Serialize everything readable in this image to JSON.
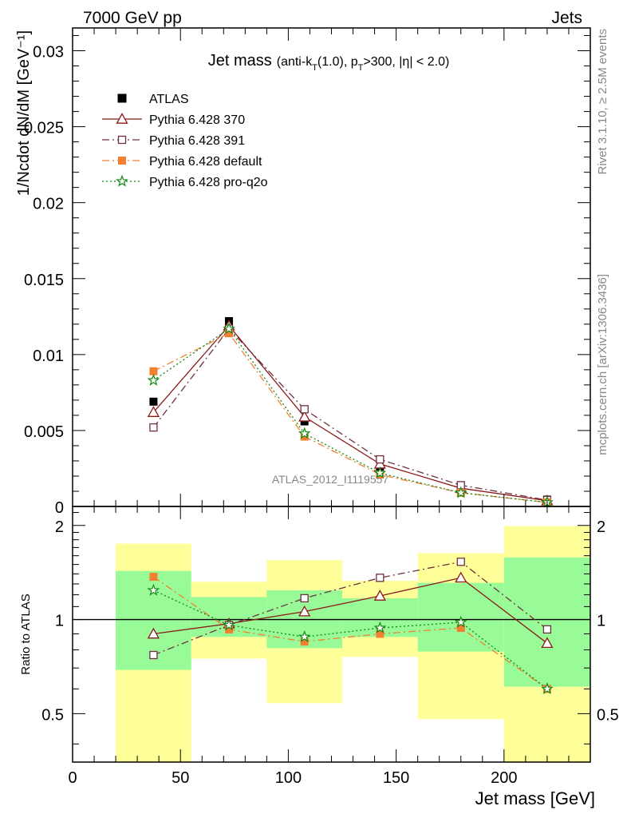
{
  "header": {
    "left": "7000 GeV pp",
    "right": "Jets"
  },
  "side_labels": {
    "rivet": "Rivet 3.1.10, ≥ 2.5M events",
    "mcplots": "mcplots.cern.ch [arXiv:1306.3436]"
  },
  "watermark": "ATLAS_2012_I1119557",
  "chart_data": [
    {
      "type": "scatter",
      "title": "Jet mass (anti-kT(1.0), pT>300, |η| < 2.0)",
      "title_parts": {
        "main": "Jet mass",
        "a": "(anti-k",
        "a_sub": "T",
        "b": "(1.0), p",
        "b_sub": "T",
        "c": ">300, |η| < 2.0)"
      },
      "ylabel": "1/Ncdot dN/dM [GeV⁻¹]",
      "xlim": [
        0,
        240
      ],
      "ylim": [
        0,
        0.0315
      ],
      "yticks": [
        0,
        0.005,
        0.01,
        0.015,
        0.02,
        0.025,
        0.03
      ],
      "yticklabels": [
        "0",
        "0.005",
        "0.01",
        "0.015",
        "0.02",
        "0.025",
        "0.03"
      ],
      "legend_position": "top-left",
      "x": [
        37.5,
        72.5,
        107.5,
        142.5,
        180,
        220
      ],
      "series": [
        {
          "name": "ATLAS",
          "color": "#000000",
          "marker": "square-filled",
          "line": "none",
          "values": [
            0.0069,
            0.0122,
            0.0056,
            0.0024,
            0.0011,
            0.00045
          ]
        },
        {
          "name": "Pythia 6.428 370",
          "color": "#8b1a1a",
          "marker": "triangle-open",
          "line": "solid",
          "values": [
            0.0062,
            0.0119,
            0.0059,
            0.0028,
            0.0012,
            0.00038
          ]
        },
        {
          "name": "Pythia 6.428 391",
          "color": "#6e3040",
          "marker": "square-open",
          "line": "dashdot",
          "values": [
            0.0052,
            0.0117,
            0.0064,
            0.0031,
            0.0014,
            0.00042
          ]
        },
        {
          "name": "Pythia 6.428 default",
          "color": "#f28030",
          "marker": "square-filled",
          "line": "dashdot",
          "values": [
            0.0089,
            0.0114,
            0.0046,
            0.0021,
            0.0009,
            0.00027
          ]
        },
        {
          "name": "Pythia 6.428 pro-q2o",
          "color": "#118811",
          "marker": "star",
          "line": "dotted",
          "values": [
            0.0083,
            0.0117,
            0.0048,
            0.0022,
            0.0009,
            0.00027
          ]
        }
      ]
    },
    {
      "type": "line",
      "ylabel": "Ratio to ATLAS",
      "xlabel": "Jet mass [GeV]",
      "xlim": [
        0,
        240
      ],
      "ylim": [
        0.35,
        2.3
      ],
      "yscale": "log",
      "yticks": [
        0.5,
        1,
        2
      ],
      "yticklabels": [
        "0.5",
        "1",
        "2"
      ],
      "xticks": [
        0,
        50,
        100,
        150,
        200
      ],
      "xticklabels": [
        "0",
        "50",
        "100",
        "150",
        "200"
      ],
      "bands": [
        {
          "x0": 20,
          "x1": 55,
          "stat": [
            0.69,
            1.43
          ],
          "syst": [
            0.35,
            1.75
          ]
        },
        {
          "x0": 55,
          "x1": 90,
          "stat": [
            0.88,
            1.18
          ],
          "syst": [
            0.75,
            1.32
          ]
        },
        {
          "x0": 90,
          "x1": 125,
          "stat": [
            0.81,
            1.24
          ],
          "syst": [
            0.54,
            1.55
          ]
        },
        {
          "x0": 125,
          "x1": 160,
          "stat": [
            0.88,
            1.17
          ],
          "syst": [
            0.76,
            1.33
          ]
        },
        {
          "x0": 160,
          "x1": 200,
          "stat": [
            0.79,
            1.31
          ],
          "syst": [
            0.48,
            1.63
          ]
        },
        {
          "x0": 200,
          "x1": 240,
          "stat": [
            0.61,
            1.58
          ],
          "syst": [
            0.35,
            1.99
          ]
        }
      ],
      "band_colors": {
        "stat": "#98fb98",
        "syst": "#ffff99"
      },
      "x": [
        37.5,
        72.5,
        107.5,
        142.5,
        180,
        220
      ],
      "series": [
        {
          "name": "Pythia 6.428 370",
          "color": "#8b1a1a",
          "marker": "triangle-open",
          "line": "solid",
          "values": [
            0.9,
            0.97,
            1.06,
            1.19,
            1.36,
            0.84
          ]
        },
        {
          "name": "Pythia 6.428 391",
          "color": "#6e3040",
          "marker": "square-open",
          "line": "dashdot",
          "values": [
            0.77,
            0.96,
            1.17,
            1.36,
            1.53,
            0.93
          ]
        },
        {
          "name": "Pythia 6.428 default",
          "color": "#f28030",
          "marker": "square-filled",
          "line": "dashdot",
          "values": [
            1.37,
            0.93,
            0.85,
            0.9,
            0.94,
            0.6
          ]
        },
        {
          "name": "Pythia 6.428 pro-q2o",
          "color": "#118811",
          "marker": "star",
          "line": "dotted",
          "values": [
            1.24,
            0.96,
            0.88,
            0.94,
            0.98,
            0.6
          ]
        }
      ]
    }
  ]
}
